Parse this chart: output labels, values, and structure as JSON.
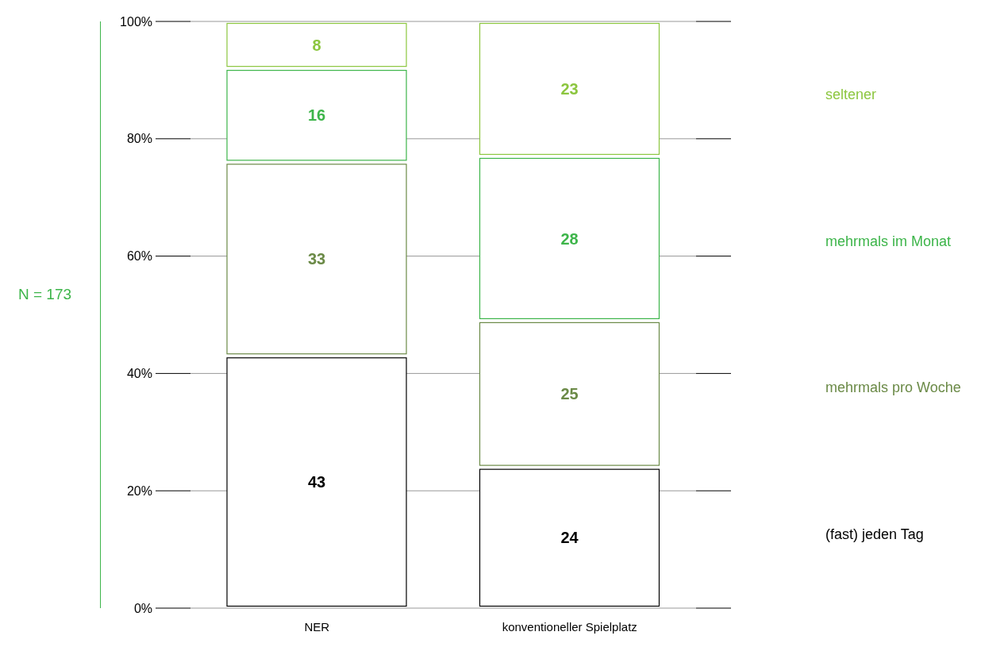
{
  "chart_data": {
    "type": "bar",
    "stacked": true,
    "categories": [
      "NER",
      "konventioneller Spielplatz"
    ],
    "series": [
      {
        "name": "(fast) jeden Tag",
        "color": "#000000",
        "values": [
          43,
          24
        ]
      },
      {
        "name": "mehrmals pro Woche",
        "color": "#6b8a47",
        "values": [
          33,
          25
        ]
      },
      {
        "name": "mehrmals im Monat",
        "color": "#3db54a",
        "values": [
          16,
          28
        ]
      },
      {
        "name": "seltener",
        "color": "#8cc63f",
        "values": [
          8,
          23
        ]
      }
    ],
    "ylim": [
      0,
      100
    ],
    "yticks": [
      {
        "value": 0,
        "label": "0%"
      },
      {
        "value": 20,
        "label": "20%"
      },
      {
        "value": 40,
        "label": "40%"
      },
      {
        "value": 60,
        "label": "60%"
      },
      {
        "value": 80,
        "label": "80%"
      },
      {
        "value": 100,
        "label": "100%"
      }
    ],
    "grid": "y",
    "legend": "right",
    "data_labels": true,
    "annotations": [
      "N = 173"
    ]
  }
}
